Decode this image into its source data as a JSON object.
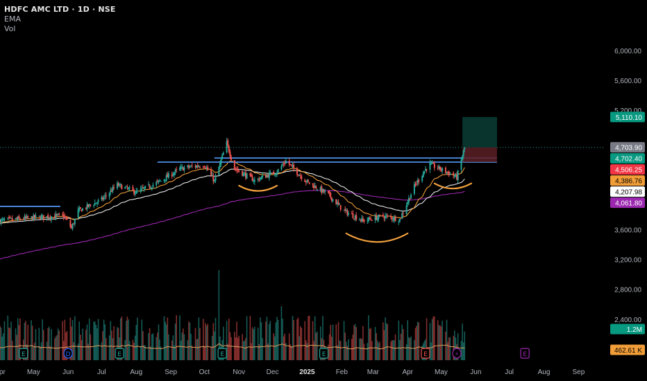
{
  "header": {
    "symbol_line": "HDFC AMC LTD · 1D · NSE",
    "indicator_ema": "EMA",
    "indicator_vol": "Vol"
  },
  "colors": {
    "background": "#000000",
    "up": "#26a69a",
    "down": "#ef5350",
    "resistance_line": "#4f8fe8",
    "ema_fast": "#f29e38",
    "ema_mid": "#e8e8e8",
    "ema_slow": "#9c27b0",
    "pattern_arc": "#f2a03d",
    "volume_ma": "#e0a060"
  },
  "chart_data": {
    "type": "candlestick",
    "price_axis": {
      "ticks": [
        "6,000.00",
        "5,600.00",
        "5,200.00",
        "3,600.00",
        "3,200.00",
        "2,800.00",
        "2,400.00"
      ],
      "tick_values": [
        6000,
        5600,
        5200,
        3600,
        3200,
        2800,
        2400
      ],
      "range": [
        1850,
        6400
      ]
    },
    "time_axis": {
      "labels": [
        "Apr",
        "May",
        "Jun",
        "Jul",
        "Aug",
        "Sep",
        "Oct",
        "Nov",
        "Dec",
        "2025",
        "Feb",
        "Mar",
        "Apr",
        "May",
        "Jun",
        "Jul",
        "Aug",
        "Sep"
      ],
      "label_days": [
        0,
        30,
        61,
        91,
        122,
        153,
        183,
        214,
        244,
        275,
        306,
        334,
        365,
        395,
        426,
        456,
        487,
        518
      ],
      "start_date": "2024-04-01",
      "end_date": "2025-09-25"
    },
    "price_badges": [
      {
        "label": "5,110.10",
        "value": 5110.1,
        "color": "#089981",
        "text_color": "#ffffff"
      },
      {
        "label": "4,703.90",
        "value": 4703.9,
        "color": "#787b86",
        "text_color": "#ffffff"
      },
      {
        "label": "4,702.40",
        "value": 4702.4,
        "color": "#089981",
        "text_color": "#ffffff"
      },
      {
        "label": "4,506.25",
        "value": 4506.25,
        "color": "#f23645",
        "text_color": "#ffffff"
      },
      {
        "label": "4,386.76",
        "value": 4386.76,
        "color": "#f29e38",
        "text_color": "#000000"
      },
      {
        "label": "4,207.98",
        "value": 4207.98,
        "color": "#ffffff",
        "text_color": "#000000"
      },
      {
        "label": "4,061.80",
        "value": 4061.8,
        "color": "#9c27b0",
        "text_color": "#ffffff"
      }
    ],
    "volume_badges": [
      {
        "label": "1.2M",
        "color": "#089981",
        "text_color": "#ffffff"
      },
      {
        "label": "462.61 K",
        "color": "#f29e38",
        "text_color": "#000000"
      }
    ],
    "last_price": 4702.4,
    "resistance_levels": [
      {
        "from": "2024-04-01",
        "to": "2024-05-25",
        "price": 3912
      },
      {
        "from": "2024-08-20",
        "to": "2025-06-20",
        "price": 4506
      },
      {
        "from": "2024-10-10",
        "to": "2025-06-20",
        "price": 4560
      }
    ],
    "trade_box": {
      "from": "2025-05-20",
      "to": "2025-06-20",
      "entry": 4702.4,
      "target": 5110.1,
      "stop": 4506.25
    },
    "pattern_arcs": [
      {
        "from": "2024-11-01",
        "to": "2024-12-05",
        "price": 4190
      },
      {
        "from": "2025-02-05",
        "to": "2025-04-01",
        "price": 3550
      },
      {
        "from": "2025-04-25",
        "to": "2025-05-28",
        "price": 4220
      }
    ],
    "earnings_markers": [
      {
        "date": "2024-04-22",
        "kind": "E",
        "color": "#26a69a"
      },
      {
        "date": "2024-06-01",
        "kind": "D",
        "color": "#2962ff"
      },
      {
        "date": "2024-07-17",
        "kind": "E",
        "color": "#26a69a"
      },
      {
        "date": "2024-10-17",
        "kind": "E",
        "color": "#26a69a"
      },
      {
        "date": "2025-01-16",
        "kind": "E",
        "color": "#26a69a"
      },
      {
        "date": "2025-04-17",
        "kind": "E",
        "color": "#ef5350"
      },
      {
        "date": "2025-05-15",
        "kind": "⚡",
        "color": "#9c27b0"
      },
      {
        "date": "2025-07-15",
        "kind": "E",
        "color": "#9c27b0"
      }
    ],
    "price_series": [
      {
        "date": "2024-04-01",
        "close": 3720
      },
      {
        "date": "2024-05-01",
        "close": 3760
      },
      {
        "date": "2024-05-28",
        "close": 3790
      },
      {
        "date": "2024-06-04",
        "close": 3620
      },
      {
        "date": "2024-06-10",
        "close": 3850
      },
      {
        "date": "2024-07-01",
        "close": 4000
      },
      {
        "date": "2024-07-15",
        "close": 4200
      },
      {
        "date": "2024-08-01",
        "close": 4100
      },
      {
        "date": "2024-08-20",
        "close": 4230
      },
      {
        "date": "2024-09-10",
        "close": 4420
      },
      {
        "date": "2024-10-01",
        "close": 4470
      },
      {
        "date": "2024-10-10",
        "close": 4250
      },
      {
        "date": "2024-10-21",
        "close": 4760
      },
      {
        "date": "2024-10-28",
        "close": 4420
      },
      {
        "date": "2024-11-15",
        "close": 4260
      },
      {
        "date": "2024-12-05",
        "close": 4380
      },
      {
        "date": "2024-12-13",
        "close": 4520
      },
      {
        "date": "2024-12-31",
        "close": 4250
      },
      {
        "date": "2025-01-20",
        "close": 4070
      },
      {
        "date": "2025-02-03",
        "close": 3850
      },
      {
        "date": "2025-02-20",
        "close": 3720
      },
      {
        "date": "2025-03-10",
        "close": 3780
      },
      {
        "date": "2025-03-25",
        "close": 3740
      },
      {
        "date": "2025-04-07",
        "close": 4180
      },
      {
        "date": "2025-04-20",
        "close": 4480
      },
      {
        "date": "2025-05-05",
        "close": 4380
      },
      {
        "date": "2025-05-15",
        "close": 4300
      },
      {
        "date": "2025-05-22",
        "close": 4702.4
      }
    ]
  }
}
